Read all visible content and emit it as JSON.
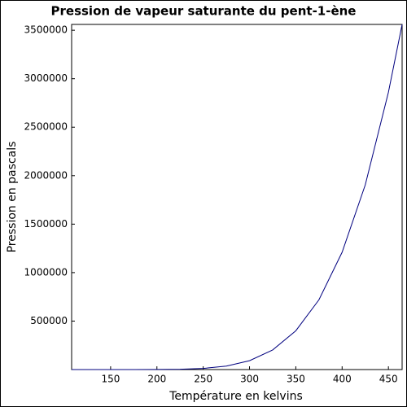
{
  "chart_data": {
    "type": "line",
    "title": "Pression de vapeur saturante du pent-1-ène",
    "x_label": "Température en kelvins",
    "y_label": "Pression en pascals",
    "x": [
      107.9,
      125,
      150,
      175,
      200,
      225,
      250,
      275,
      300,
      325,
      350,
      375,
      400,
      425,
      450,
      464.8
    ],
    "series": [
      {
        "color": "#00007f",
        "values": [
          0,
          0,
          3,
          60,
          525,
          2930,
          11600,
          35800,
          91500,
          202000,
          400000,
          720000,
          1210000,
          1905000,
          2860000,
          3560000
        ]
      }
    ],
    "xlim": [
      107.9,
      464.8
    ],
    "xticks": [
      150,
      200,
      250,
      300,
      350,
      400,
      450
    ],
    "ylim": [
      0,
      3560000
    ],
    "yticks": [
      500000,
      1000000,
      1500000,
      2000000,
      2500000,
      3000000,
      3500000
    ]
  }
}
